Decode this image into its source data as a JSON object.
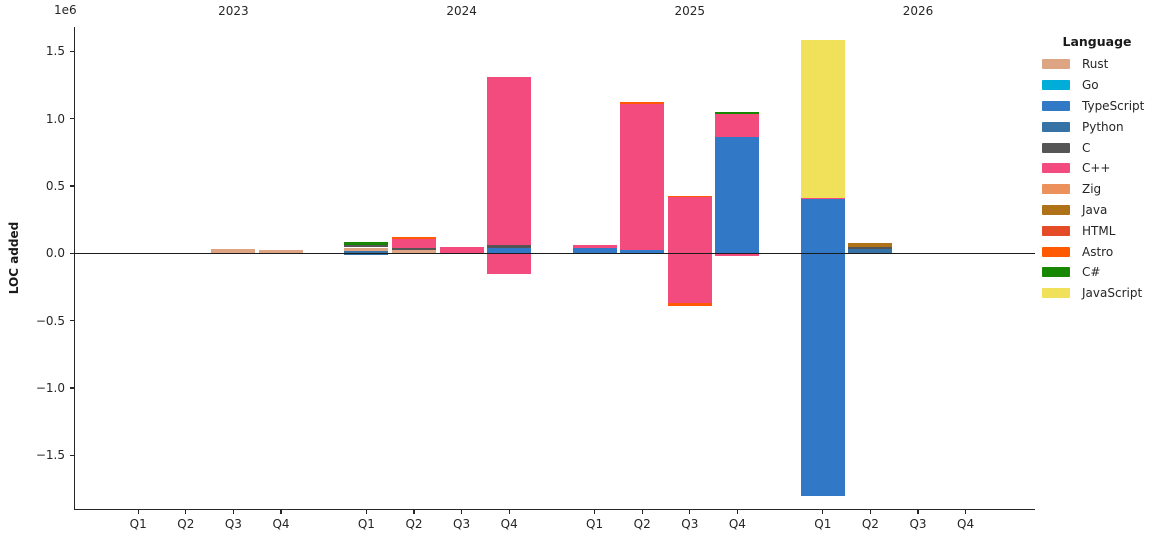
{
  "chart_data": {
    "type": "bar",
    "stacked": true,
    "title": "",
    "ylabel": "LOC added",
    "y_offset_label": "1e6",
    "xlabel": "",
    "ylim": [
      -1900000,
      1650000
    ],
    "grid": false,
    "yticks": [
      {
        "value": 1500000,
        "label": "1.5"
      },
      {
        "value": 1000000,
        "label": "1.0"
      },
      {
        "value": 500000,
        "label": "0.5"
      },
      {
        "value": 0,
        "label": "0.0"
      },
      {
        "value": -500000,
        "label": "−0.5"
      },
      {
        "value": -1000000,
        "label": "−1.0"
      },
      {
        "value": -1500000,
        "label": "−1.5"
      }
    ],
    "legend": {
      "title": "Language",
      "position": "right",
      "entries": [
        {
          "label": "Rust",
          "color": "#dea584"
        },
        {
          "label": "Go",
          "color": "#00add8"
        },
        {
          "label": "TypeScript",
          "color": "#3178c6"
        },
        {
          "label": "Python",
          "color": "#3572a5"
        },
        {
          "label": "C",
          "color": "#555555"
        },
        {
          "label": "C++",
          "color": "#f34b7d"
        },
        {
          "label": "Zig",
          "color": "#ec915c"
        },
        {
          "label": "Java",
          "color": "#b07219"
        },
        {
          "label": "HTML",
          "color": "#e34c26"
        },
        {
          "label": "Astro",
          "color": "#ff5a03"
        },
        {
          "label": "C#",
          "color": "#178600"
        },
        {
          "label": "JavaScript",
          "color": "#f1e05a"
        }
      ]
    },
    "groups": [
      {
        "year": "2023",
        "quarters": [
          {
            "label": "Q1",
            "segments": []
          },
          {
            "label": "Q2",
            "segments": []
          },
          {
            "label": "Q3",
            "segments": [
              {
                "lang": "Rust",
                "value": 30000
              }
            ]
          },
          {
            "label": "Q4",
            "segments": [
              {
                "lang": "Rust",
                "value": 28000
              }
            ]
          }
        ]
      },
      {
        "year": "2024",
        "quarters": [
          {
            "label": "Q1",
            "segments": [
              {
                "lang": "Python",
                "value": 18000
              },
              {
                "lang": "Rust",
                "value": 25000
              },
              {
                "lang": "C",
                "value": 19000
              },
              {
                "lang": "C#",
                "value": 25000
              },
              {
                "lang": "Python",
                "value": -13000
              }
            ]
          },
          {
            "label": "Q2",
            "segments": [
              {
                "lang": "Rust",
                "value": 25000
              },
              {
                "lang": "C",
                "value": 18000
              },
              {
                "lang": "C++",
                "value": 65000
              },
              {
                "lang": "Astro",
                "value": 10000
              }
            ]
          },
          {
            "label": "Q3",
            "segments": [
              {
                "lang": "C++",
                "value": 45000
              }
            ]
          },
          {
            "label": "Q4",
            "segments": [
              {
                "lang": "TypeScript",
                "value": 42000
              },
              {
                "lang": "C",
                "value": 20000
              },
              {
                "lang": "C++",
                "value": 1249000
              },
              {
                "lang": "C++",
                "value": -150000
              }
            ]
          }
        ]
      },
      {
        "year": "2025",
        "quarters": [
          {
            "label": "Q1",
            "segments": [
              {
                "lang": "TypeScript",
                "value": 42000
              },
              {
                "lang": "C++",
                "value": 22000
              }
            ]
          },
          {
            "label": "Q2",
            "segments": [
              {
                "lang": "TypeScript",
                "value": 25000
              },
              {
                "lang": "C++",
                "value": 1080000
              },
              {
                "lang": "Astro",
                "value": 18000
              }
            ]
          },
          {
            "label": "Q3",
            "segments": [
              {
                "lang": "C++",
                "value": 418000
              },
              {
                "lang": "Astro",
                "value": 10000
              },
              {
                "lang": "C++",
                "value": -370000
              },
              {
                "lang": "Astro",
                "value": -20000
              }
            ]
          },
          {
            "label": "Q4",
            "segments": [
              {
                "lang": "TypeScript",
                "value": 865000
              },
              {
                "lang": "C++",
                "value": 168000
              },
              {
                "lang": "C#",
                "value": 14000
              },
              {
                "lang": "C++",
                "value": -20000
              }
            ]
          }
        ]
      },
      {
        "year": "2026",
        "quarters": [
          {
            "label": "Q1",
            "segments": [
              {
                "lang": "TypeScript",
                "value": 400000
              },
              {
                "lang": "C++",
                "value": 10000
              },
              {
                "lang": "JavaScript",
                "value": 1173000
              },
              {
                "lang": "TypeScript",
                "value": -1800000
              }
            ]
          },
          {
            "label": "Q2",
            "segments": [
              {
                "lang": "Python",
                "value": 30000
              },
              {
                "lang": "C",
                "value": 20000
              },
              {
                "lang": "Java",
                "value": 28000
              }
            ]
          },
          {
            "label": "Q3",
            "segments": []
          },
          {
            "label": "Q4",
            "segments": []
          }
        ]
      }
    ]
  }
}
